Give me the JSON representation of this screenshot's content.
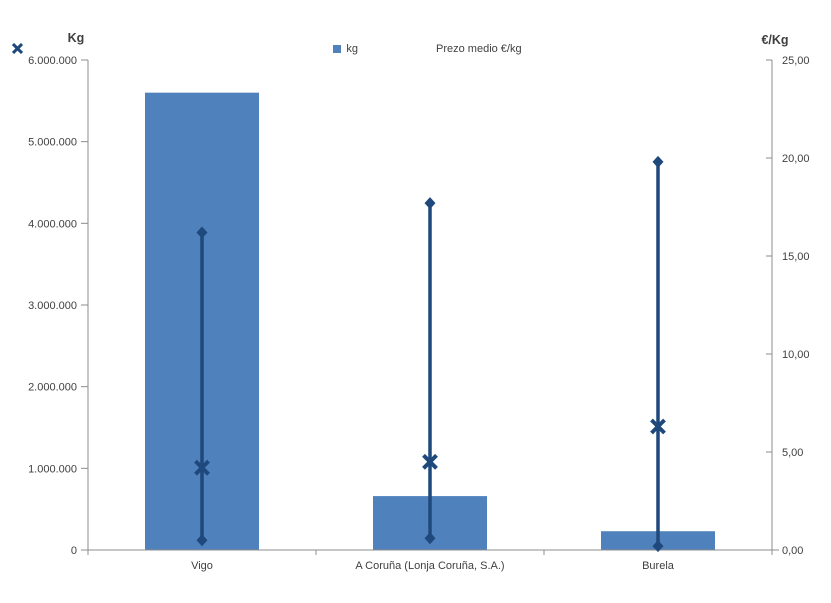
{
  "chart_data": {
    "type": "bar",
    "subtype": "column + high-low range lines with average X markers, dual axis",
    "title": "",
    "categories": [
      "Vigo",
      "A Coruña (Lonja Coruña, S.A.)",
      "Burela"
    ],
    "series": [
      {
        "name": "kg",
        "type": "bar",
        "axis": "left",
        "marker": "square",
        "color": "#4f81bd",
        "values": [
          5600000,
          660000,
          230000
        ]
      },
      {
        "name": "Prezo medio €/kg",
        "type": "range-line-with-avg-marker",
        "axis": "right",
        "marker": "x",
        "color": "#1f497d",
        "avg": [
          4.2,
          4.5,
          6.3
        ],
        "min": [
          0.5,
          0.6,
          0.2
        ],
        "max": [
          16.2,
          17.7,
          19.8
        ]
      }
    ],
    "left_axis": {
      "label": "Kg",
      "min": 0,
      "max": 6000000,
      "step": 1000000,
      "tick_labels": [
        "6.000.000",
        "5.000.000",
        "4.000.000",
        "3.000.000",
        "2.000.000",
        "1.000.000",
        "0"
      ]
    },
    "right_axis": {
      "label": "€/Kg",
      "min": 0,
      "max": 25,
      "step": 5,
      "tick_labels": [
        "25,00",
        "20,00",
        "15,00",
        "10,00",
        "5,00",
        "0,00"
      ]
    },
    "grid": false,
    "legend_position": "top-center",
    "colors": {
      "axis_line": "#8c8c8c",
      "text": "#404040",
      "background": "#ffffff"
    }
  }
}
